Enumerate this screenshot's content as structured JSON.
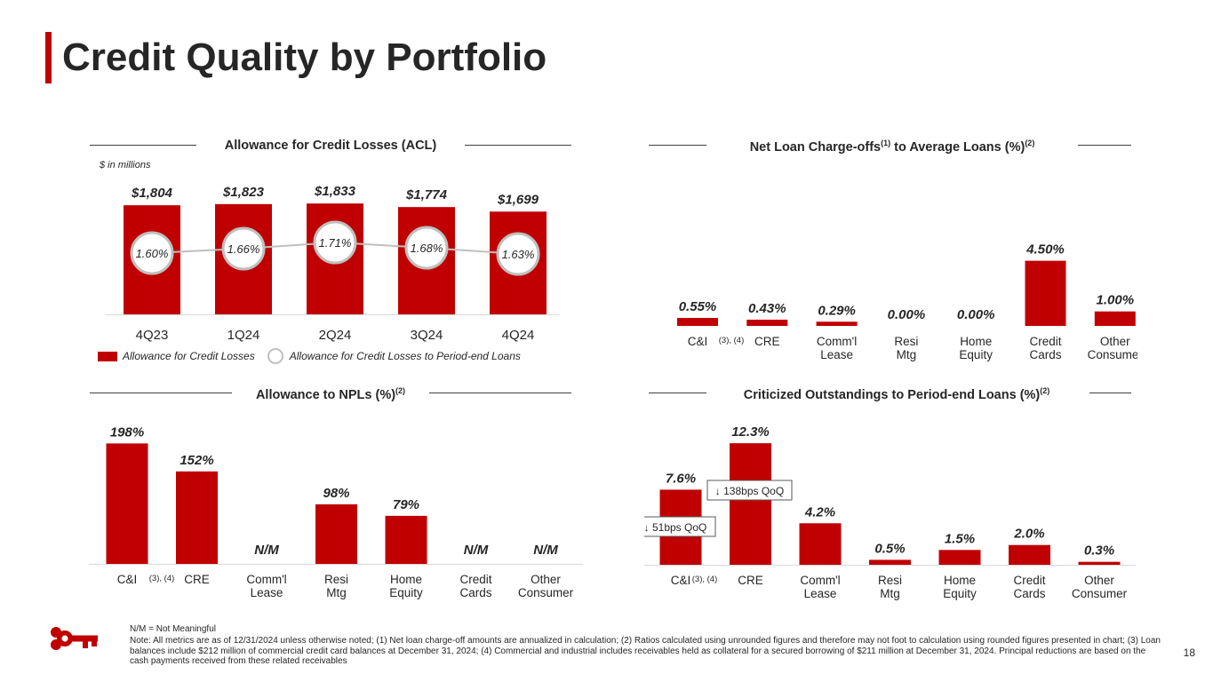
{
  "page": {
    "title": "Credit Quality by Portfolio",
    "page_number": "18",
    "nm_note": "N/M = Not Meaningful",
    "footnote": "Note: All metrics are as of 12/31/2024 unless otherwise noted; (1) Net loan charge-off amounts are annualized in calculation; (2) Ratios calculated using unrounded figures and therefore may not foot to calculation using rounded figures presented in chart; (3) Loan balances include $212 million of commercial credit card balances at December 31, 2024; (4) Commercial and industrial includes receivables held as collateral for a secured borrowing of $211 million at December 31, 2024. Principal reductions are based on the cash payments received from these related receivables",
    "colors": {
      "accent": "#c00000",
      "text": "#262626",
      "marker": "#bfbfbf",
      "axis": "#d9d9d9"
    },
    "logo_icon": "key-logo-icon"
  },
  "chart_data": [
    {
      "id": "acl",
      "type": "bar",
      "title": "Allowance for Credit Losses (ACL)",
      "units_note": "$ in millions",
      "categories": [
        "4Q23",
        "1Q24",
        "2Q24",
        "3Q24",
        "4Q24"
      ],
      "series": [
        {
          "name": "Allowance for Credit Losses",
          "values": [
            1804,
            1823,
            1833,
            1774,
            1699
          ],
          "labels": [
            "$1,804",
            "$1,823",
            "$1,833",
            "$1,774",
            "$1,699"
          ],
          "color": "#c00000"
        },
        {
          "name": "Allowance for Credit Losses to Period-end Loans",
          "type": "line",
          "values": [
            1.6,
            1.66,
            1.71,
            1.68,
            1.63
          ],
          "labels": [
            "1.60%",
            "1.66%",
            "1.71%",
            "1.68%",
            "1.63%"
          ],
          "color": "#bfbfbf"
        }
      ],
      "ylim": [
        0,
        1850
      ],
      "legend": [
        "Allowance for Credit Losses",
        "Allowance for Credit Losses to Period-end Loans"
      ]
    },
    {
      "id": "nco",
      "type": "bar",
      "title_main": "Net Loan Charge-offs",
      "title_sup1": "(1)",
      "title_mid": " to Average Loans (%)",
      "title_sup2": "(2)",
      "categories": [
        "C&I",
        "CRE",
        "Comm'l Lease",
        "Resi Mtg",
        "Home Equity",
        "Credit Cards",
        "Other Consumer"
      ],
      "category_note": "(3), (4)",
      "values": [
        0.55,
        0.43,
        0.29,
        0.0,
        0.0,
        4.5,
        1.0
      ],
      "labels": [
        "0.55%",
        "0.43%",
        "0.29%",
        "0.00%",
        "0.00%",
        "4.50%",
        "1.00%"
      ],
      "ylim": [
        0,
        4.6
      ]
    },
    {
      "id": "npl",
      "type": "bar",
      "title_main": "Allowance to NPLs (%)",
      "title_sup": "(2)",
      "categories": [
        "C&I",
        "CRE",
        "Comm'l Lease",
        "Resi Mtg",
        "Home Equity",
        "Credit Cards",
        "Other Consumer"
      ],
      "category_note": "(3), (4)",
      "values": [
        198,
        152,
        null,
        98,
        79,
        null,
        null
      ],
      "labels": [
        "198%",
        "152%",
        "N/M",
        "98%",
        "79%",
        "N/M",
        "N/M"
      ],
      "ylim": [
        0,
        200
      ]
    },
    {
      "id": "crit",
      "type": "bar",
      "title_main": "Criticized Outstandings to Period-end Loans (%)",
      "title_sup": "(2)",
      "categories": [
        "C&I",
        "CRE",
        "Comm'l Lease",
        "Resi Mtg",
        "Home Equity",
        "Credit Cards",
        "Other Consumer"
      ],
      "category_note": "(3), (4)",
      "values": [
        7.6,
        12.3,
        4.2,
        0.5,
        1.5,
        2.0,
        0.3
      ],
      "labels": [
        "7.6%",
        "12.3%",
        "4.2%",
        "0.5%",
        "1.5%",
        "2.0%",
        "0.3%"
      ],
      "annotations": [
        "↓ 51bps QoQ",
        "↓ 138bps QoQ"
      ],
      "ylim": [
        0,
        12.4
      ]
    }
  ]
}
